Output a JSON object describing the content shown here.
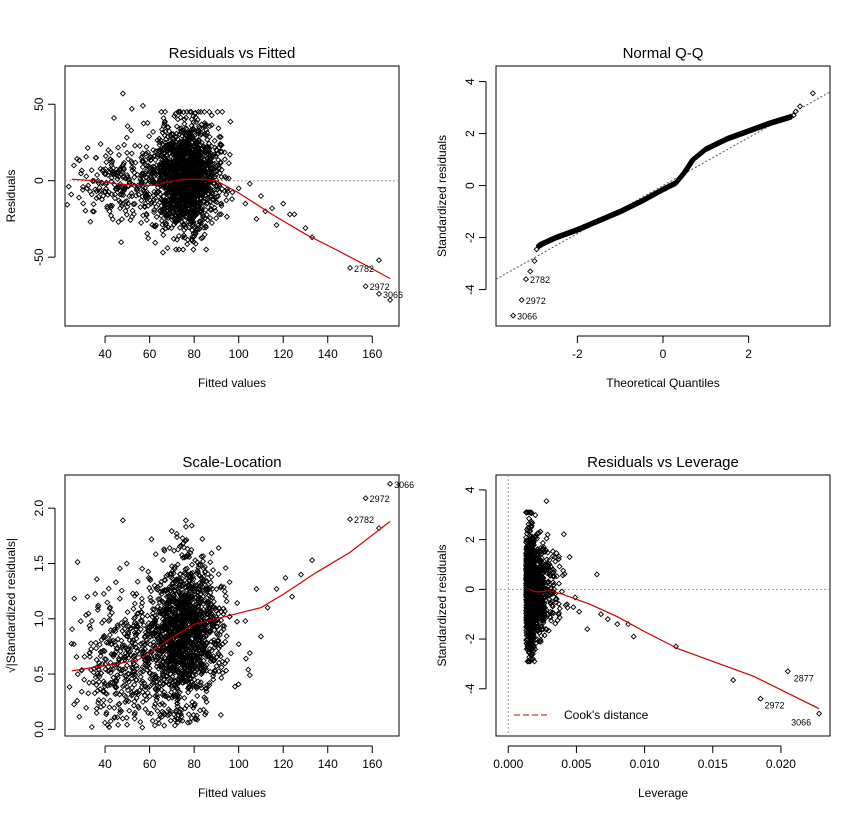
{
  "chart_data": [
    {
      "id": "rvf",
      "type": "scatter",
      "title": "Residuals vs Fitted",
      "xlabel": "Fitted values",
      "ylabel": "Residuals",
      "xlim": [
        22,
        172
      ],
      "ylim": [
        -95,
        75
      ],
      "xticks": [
        40,
        60,
        80,
        100,
        120,
        140,
        160
      ],
      "yticks": [
        -50,
        0,
        50
      ],
      "reference_line": {
        "y": 0,
        "style": "dotted",
        "color": "#9a9a9a"
      },
      "smooth": {
        "color": "#cc0000",
        "x": [
          25,
          35,
          45,
          55,
          62,
          68,
          75,
          82,
          90,
          100,
          115,
          130,
          145,
          158,
          168
        ],
        "y": [
          1,
          0,
          -2,
          -3,
          -3,
          -1,
          1,
          1,
          0,
          -8,
          -22,
          -35,
          -46,
          -56,
          -64
        ]
      },
      "cloud_seed": 11,
      "cloud": [
        {
          "n": 900,
          "x": [
            76,
            7
          ],
          "y": [
            10,
            16
          ]
        },
        {
          "n": 500,
          "x": [
            76,
            6
          ],
          "y": [
            -10,
            14
          ]
        },
        {
          "n": 250,
          "x": [
            60,
            12
          ],
          "y": [
            -2,
            14
          ]
        },
        {
          "n": 110,
          "x": [
            42,
            9
          ],
          "y": [
            0,
            11
          ]
        },
        {
          "n": 60,
          "x": [
            88,
            5
          ],
          "y": [
            5,
            15
          ]
        }
      ],
      "points": [
        {
          "x": 26,
          "y": 10
        },
        {
          "x": 30,
          "y": -6
        },
        {
          "x": 34,
          "y": -9
        },
        {
          "x": 36,
          "y": 15
        },
        {
          "x": 38,
          "y": 24
        },
        {
          "x": 41,
          "y": -18
        },
        {
          "x": 44,
          "y": 41
        },
        {
          "x": 46,
          "y": -27
        },
        {
          "x": 48,
          "y": 57
        },
        {
          "x": 52,
          "y": 47
        },
        {
          "x": 57,
          "y": 49
        },
        {
          "x": 66,
          "y": -47
        },
        {
          "x": 85,
          "y": 30
        },
        {
          "x": 91,
          "y": 8
        },
        {
          "x": 92,
          "y": -15
        },
        {
          "x": 95,
          "y": -7
        },
        {
          "x": 97,
          "y": -12
        },
        {
          "x": 100,
          "y": -5
        },
        {
          "x": 103,
          "y": -15
        },
        {
          "x": 105,
          "y": -2
        },
        {
          "x": 108,
          "y": -25
        },
        {
          "x": 110,
          "y": -10
        },
        {
          "x": 112,
          "y": -20
        },
        {
          "x": 115,
          "y": -18
        },
        {
          "x": 117,
          "y": -29
        },
        {
          "x": 120,
          "y": -15
        },
        {
          "x": 123,
          "y": -22
        },
        {
          "x": 125,
          "y": -22
        },
        {
          "x": 130,
          "y": -31
        },
        {
          "x": 133,
          "y": -37
        },
        {
          "x": 150,
          "y": -57
        },
        {
          "x": 157,
          "y": -69
        },
        {
          "x": 163,
          "y": -52
        },
        {
          "x": 163,
          "y": -74
        },
        {
          "x": 168,
          "y": -78
        }
      ],
      "labels": [
        {
          "text": "2782",
          "x": 150,
          "y": -57
        },
        {
          "text": "2972",
          "x": 157,
          "y": -69
        },
        {
          "text": "3066",
          "x": 163,
          "y": -74
        }
      ]
    },
    {
      "id": "qq",
      "type": "scatter",
      "title": "Normal Q-Q",
      "xlabel": "Theoretical Quantiles",
      "ylabel": "Standardized residuals",
      "xlim": [
        -3.9,
        3.9
      ],
      "ylim": [
        -5.4,
        4.6
      ],
      "xticks": [
        -2,
        0,
        2
      ],
      "yticks": [
        -4,
        -2,
        0,
        2,
        4
      ],
      "reference_line": {
        "x": [
          -3.9,
          3.9
        ],
        "y": [
          -3.6,
          3.6
        ],
        "style": "dotted",
        "color": "#555555"
      },
      "curve": {
        "x": [
          -2.9,
          -2.5,
          -2.0,
          -1.5,
          -1.0,
          -0.5,
          0.0,
          0.3,
          0.5,
          0.7,
          1.0,
          1.5,
          2.0,
          2.5,
          3.0
        ],
        "y": [
          -2.3,
          -2.0,
          -1.7,
          -1.35,
          -1.0,
          -0.6,
          -0.15,
          0.1,
          0.5,
          1.0,
          1.4,
          1.8,
          2.1,
          2.4,
          2.65
        ]
      },
      "points": [
        {
          "x": -3.5,
          "y": -5.0
        },
        {
          "x": -3.3,
          "y": -4.4
        },
        {
          "x": -3.2,
          "y": -3.6
        },
        {
          "x": -3.1,
          "y": -3.3
        },
        {
          "x": -3.0,
          "y": -2.9
        },
        {
          "x": -2.95,
          "y": -2.45
        },
        {
          "x": -2.9,
          "y": -2.35
        },
        {
          "x": -2.85,
          "y": -2.3
        },
        {
          "x": 3.05,
          "y": 2.7
        },
        {
          "x": 3.1,
          "y": 2.85
        },
        {
          "x": 3.2,
          "y": 3.05
        },
        {
          "x": 3.5,
          "y": 3.55
        }
      ],
      "labels": [
        {
          "text": "2782",
          "x": -3.2,
          "y": -3.6
        },
        {
          "text": "2972",
          "x": -3.3,
          "y": -4.4
        },
        {
          "text": "3066",
          "x": -3.5,
          "y": -5.0
        }
      ]
    },
    {
      "id": "sl",
      "type": "scatter",
      "title": "Scale-Location",
      "xlabel": "Fitted values",
      "ylabel": "√|Standardized residuals|",
      "xlim": [
        22,
        172
      ],
      "ylim": [
        -0.06,
        2.3
      ],
      "xticks": [
        40,
        60,
        80,
        100,
        120,
        140,
        160
      ],
      "yticks": [
        0.0,
        0.5,
        1.0,
        1.5,
        2.0
      ],
      "ytick_labels": [
        "0.0",
        "0.5",
        "1.0",
        "1.5",
        "2.0"
      ],
      "smooth": {
        "color": "#cc0000",
        "x": [
          25,
          35,
          45,
          55,
          62,
          70,
          80,
          90,
          100,
          110,
          120,
          135,
          150,
          168
        ],
        "y": [
          0.53,
          0.56,
          0.59,
          0.63,
          0.72,
          0.83,
          0.95,
          1.0,
          1.05,
          1.1,
          1.22,
          1.42,
          1.6,
          1.88
        ]
      },
      "cloud_seed": 29,
      "cloud": [
        {
          "n": 1200,
          "x": [
            76,
            7
          ],
          "y": [
            0.9,
            0.32
          ]
        },
        {
          "n": 500,
          "x": [
            60,
            12
          ],
          "y": [
            0.65,
            0.35
          ]
        },
        {
          "n": 130,
          "x": [
            42,
            9
          ],
          "y": [
            0.55,
            0.35
          ]
        },
        {
          "n": 70,
          "x": [
            88,
            5
          ],
          "y": [
            0.9,
            0.3
          ]
        }
      ],
      "points": [
        {
          "x": 26,
          "y": 0.77
        },
        {
          "x": 48,
          "y": 1.89
        },
        {
          "x": 96,
          "y": 1.02
        },
        {
          "x": 100,
          "y": 0.77
        },
        {
          "x": 103,
          "y": 0.98
        },
        {
          "x": 105,
          "y": 0.69
        },
        {
          "x": 108,
          "y": 1.27
        },
        {
          "x": 110,
          "y": 0.84
        },
        {
          "x": 113,
          "y": 1.1
        },
        {
          "x": 117,
          "y": 1.27
        },
        {
          "x": 121,
          "y": 1.37
        },
        {
          "x": 124,
          "y": 1.2
        },
        {
          "x": 128,
          "y": 1.4
        },
        {
          "x": 133,
          "y": 1.53
        },
        {
          "x": 150,
          "y": 1.9
        },
        {
          "x": 157,
          "y": 2.09
        },
        {
          "x": 163,
          "y": 1.82
        },
        {
          "x": 168,
          "y": 2.22
        },
        {
          "x": 92,
          "y": 0.13
        },
        {
          "x": 105,
          "y": 0.49
        }
      ],
      "labels": [
        {
          "text": "2782",
          "x": 150,
          "y": 1.9
        },
        {
          "text": "2972",
          "x": 157,
          "y": 2.09
        },
        {
          "text": "3066",
          "x": 168,
          "y": 2.22
        }
      ]
    },
    {
      "id": "rvl",
      "type": "scatter",
      "title": "Residuals vs Leverage",
      "xlabel": "Leverage",
      "ylabel": "Standardized residuals",
      "xlim": [
        -0.0009,
        0.0236
      ],
      "ylim": [
        -5.9,
        4.6
      ],
      "xticks": [
        0.0,
        0.005,
        0.01,
        0.015,
        0.02
      ],
      "xtick_labels": [
        "0.000",
        "0.005",
        "0.010",
        "0.015",
        "0.020"
      ],
      "yticks": [
        -4,
        -2,
        0,
        2,
        4
      ],
      "reference_line": {
        "y": 0,
        "style": "dotted",
        "color": "#9a9a9a"
      },
      "v_reference_line": {
        "x": 0,
        "style": "dotted",
        "color": "#9a9a9a"
      },
      "smooth": {
        "color": "#cc0000",
        "x": [
          0.0015,
          0.002,
          0.0025,
          0.003,
          0.004,
          0.006,
          0.008,
          0.01,
          0.0125,
          0.015,
          0.018,
          0.0228
        ],
        "y": [
          0.0,
          -0.1,
          -0.1,
          -0.05,
          -0.2,
          -0.6,
          -1.1,
          -1.7,
          -2.4,
          -2.9,
          -3.5,
          -4.8
        ]
      },
      "cloud_seed": 47,
      "cloud": [
        {
          "n": 1200,
          "x": [
            0.0016,
            0.00018
          ],
          "y": [
            0,
            1.05
          ],
          "xmin": 0.0013
        },
        {
          "n": 400,
          "x": [
            0.0022,
            0.00035
          ],
          "y": [
            0,
            0.9
          ],
          "xmin": 0.0013
        },
        {
          "n": 90,
          "x": [
            0.0032,
            0.0006
          ],
          "y": [
            0,
            0.9
          ],
          "xmin": 0.0013
        }
      ],
      "points": [
        {
          "x": 0.0028,
          "y": 3.55
        },
        {
          "x": 0.0043,
          "y": -0.6
        },
        {
          "x": 0.0045,
          "y": 1.3
        },
        {
          "x": 0.0052,
          "y": -0.9
        },
        {
          "x": 0.0058,
          "y": -1.6
        },
        {
          "x": 0.0065,
          "y": 0.6
        },
        {
          "x": 0.0068,
          "y": -1.0
        },
        {
          "x": 0.0073,
          "y": -1.2
        },
        {
          "x": 0.008,
          "y": -1.4
        },
        {
          "x": 0.0088,
          "y": -1.4
        },
        {
          "x": 0.0092,
          "y": -1.9
        },
        {
          "x": 0.0123,
          "y": -2.3
        },
        {
          "x": 0.0165,
          "y": -3.65
        },
        {
          "x": 0.0185,
          "y": -4.4
        },
        {
          "x": 0.0205,
          "y": -3.3
        },
        {
          "x": 0.0228,
          "y": -5.0
        }
      ],
      "labels": [
        {
          "text": "2877",
          "x": 0.0205,
          "y": -3.3,
          "dx": 6,
          "dy": 10
        },
        {
          "text": "2972",
          "x": 0.0185,
          "y": -4.4,
          "dx": 4,
          "dy": 10
        },
        {
          "text": "3066",
          "x": 0.0228,
          "y": -5.0,
          "dx": -28,
          "dy": 12
        }
      ],
      "legend": {
        "label": "Cook's distance",
        "color": "#cc0000",
        "style": "dashed",
        "placement": "bottom-left"
      }
    }
  ]
}
